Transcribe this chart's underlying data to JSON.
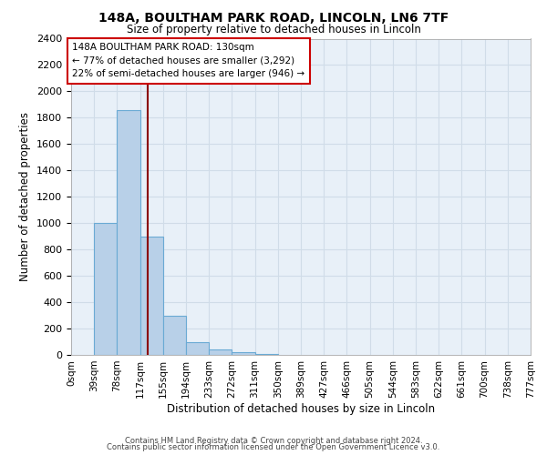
{
  "title1": "148A, BOULTHAM PARK ROAD, LINCOLN, LN6 7TF",
  "title2": "Size of property relative to detached houses in Lincoln",
  "xlabel": "Distribution of detached houses by size in Lincoln",
  "ylabel": "Number of detached properties",
  "bar_values": [
    0,
    1000,
    1860,
    900,
    300,
    100,
    40,
    20,
    5,
    0,
    0,
    0,
    0,
    0,
    0,
    0,
    0,
    0,
    0,
    0
  ],
  "bin_labels": [
    "0sqm",
    "39sqm",
    "78sqm",
    "117sqm",
    "155sqm",
    "194sqm",
    "233sqm",
    "272sqm",
    "311sqm",
    "350sqm",
    "389sqm",
    "427sqm",
    "466sqm",
    "505sqm",
    "544sqm",
    "583sqm",
    "622sqm",
    "661sqm",
    "700sqm",
    "738sqm",
    "777sqm"
  ],
  "bar_color": "#b8d0e8",
  "bar_edge_color": "#6aaad4",
  "grid_color": "#d0dce8",
  "background_color": "#e8f0f8",
  "vline_x": 130,
  "vline_color": "#8b0000",
  "annotation_title": "148A BOULTHAM PARK ROAD: 130sqm",
  "annotation_line2": "← 77% of detached houses are smaller (3,292)",
  "annotation_line3": "22% of semi-detached houses are larger (946) →",
  "annotation_box_color": "#ffffff",
  "annotation_border_color": "#cc0000",
  "ylim": [
    0,
    2400
  ],
  "yticks": [
    0,
    200,
    400,
    600,
    800,
    1000,
    1200,
    1400,
    1600,
    1800,
    2000,
    2200,
    2400
  ],
  "footer1": "Contains HM Land Registry data © Crown copyright and database right 2024.",
  "footer2": "Contains public sector information licensed under the Open Government Licence v3.0.",
  "bin_width": 39,
  "n_bins": 20
}
